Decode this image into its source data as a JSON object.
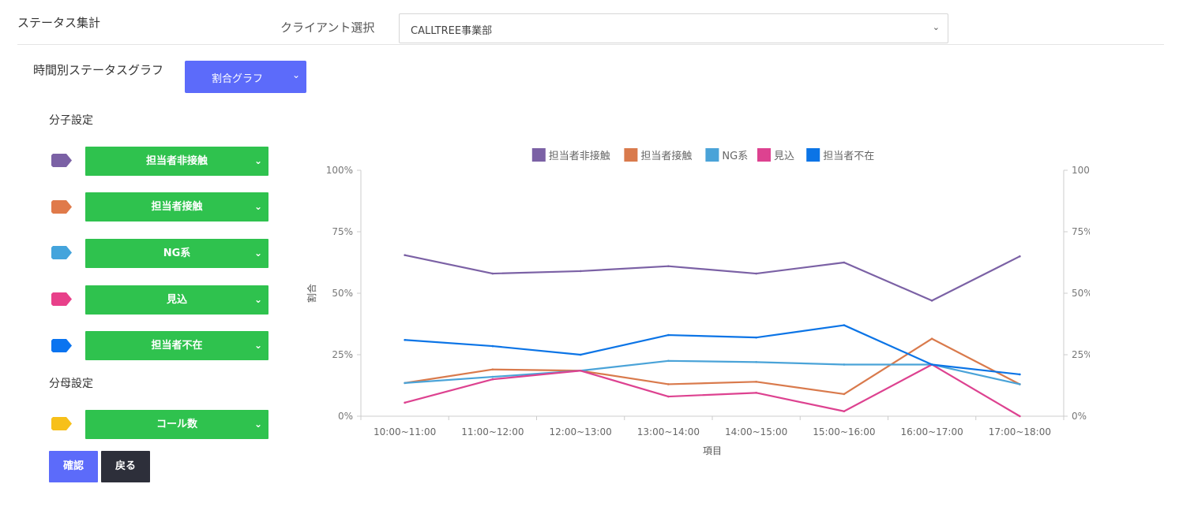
{
  "header": {
    "title": "ステータス集計",
    "client_label": "クライアント選択",
    "client_value": "CALLTREE事業部"
  },
  "graph_settings": {
    "label": "時間別ステータスグラフ",
    "type_value": "割合グラフ"
  },
  "numerator": {
    "label": "分子設定",
    "items": [
      {
        "label": "担当者非接触",
        "color": "#7b61a5"
      },
      {
        "label": "担当者接触",
        "color": "#e07a4a"
      },
      {
        "label": "NG系",
        "color": "#44a4dc"
      },
      {
        "label": "見込",
        "color": "#e8408a"
      },
      {
        "label": "担当者不在",
        "color": "#0a74f0"
      }
    ]
  },
  "denominator": {
    "label": "分母設定",
    "item": {
      "label": "コール数",
      "color": "#f7c01a"
    }
  },
  "buttons": {
    "confirm": "確認",
    "back": "戻る"
  },
  "chart_data": {
    "type": "line",
    "categories": [
      "10:00~11:00",
      "11:00~12:00",
      "12:00~13:00",
      "13:00~14:00",
      "14:00~15:00",
      "15:00~16:00",
      "16:00~17:00",
      "17:00~18:00"
    ],
    "series": [
      {
        "name": "担当者非接触",
        "color": "#7b61a5",
        "values": [
          65.5,
          58,
          59,
          61,
          58,
          62.5,
          47,
          65
        ]
      },
      {
        "name": "担当者接触",
        "color": "#d97a4c",
        "values": [
          13.5,
          19,
          18.5,
          13,
          14,
          9,
          31.5,
          13
        ]
      },
      {
        "name": "NG系",
        "color": "#4aa3d8",
        "values": [
          13.5,
          16,
          18.5,
          22.5,
          22,
          21,
          21,
          13
        ]
      },
      {
        "name": "見込",
        "color": "#dd4290",
        "values": [
          5.5,
          15,
          18.5,
          8,
          9.5,
          2,
          21,
          0
        ]
      },
      {
        "name": "担当者不在",
        "color": "#0b74e6",
        "values": [
          31,
          28.5,
          25,
          33,
          32,
          37,
          21,
          17
        ]
      }
    ],
    "xlabel": "項目",
    "ylabel": "割合",
    "ylim": [
      0,
      100
    ],
    "yticks": [
      "0%",
      "25%",
      "50%",
      "75%",
      "100%"
    ],
    "legend_position": "top",
    "grid": false
  }
}
